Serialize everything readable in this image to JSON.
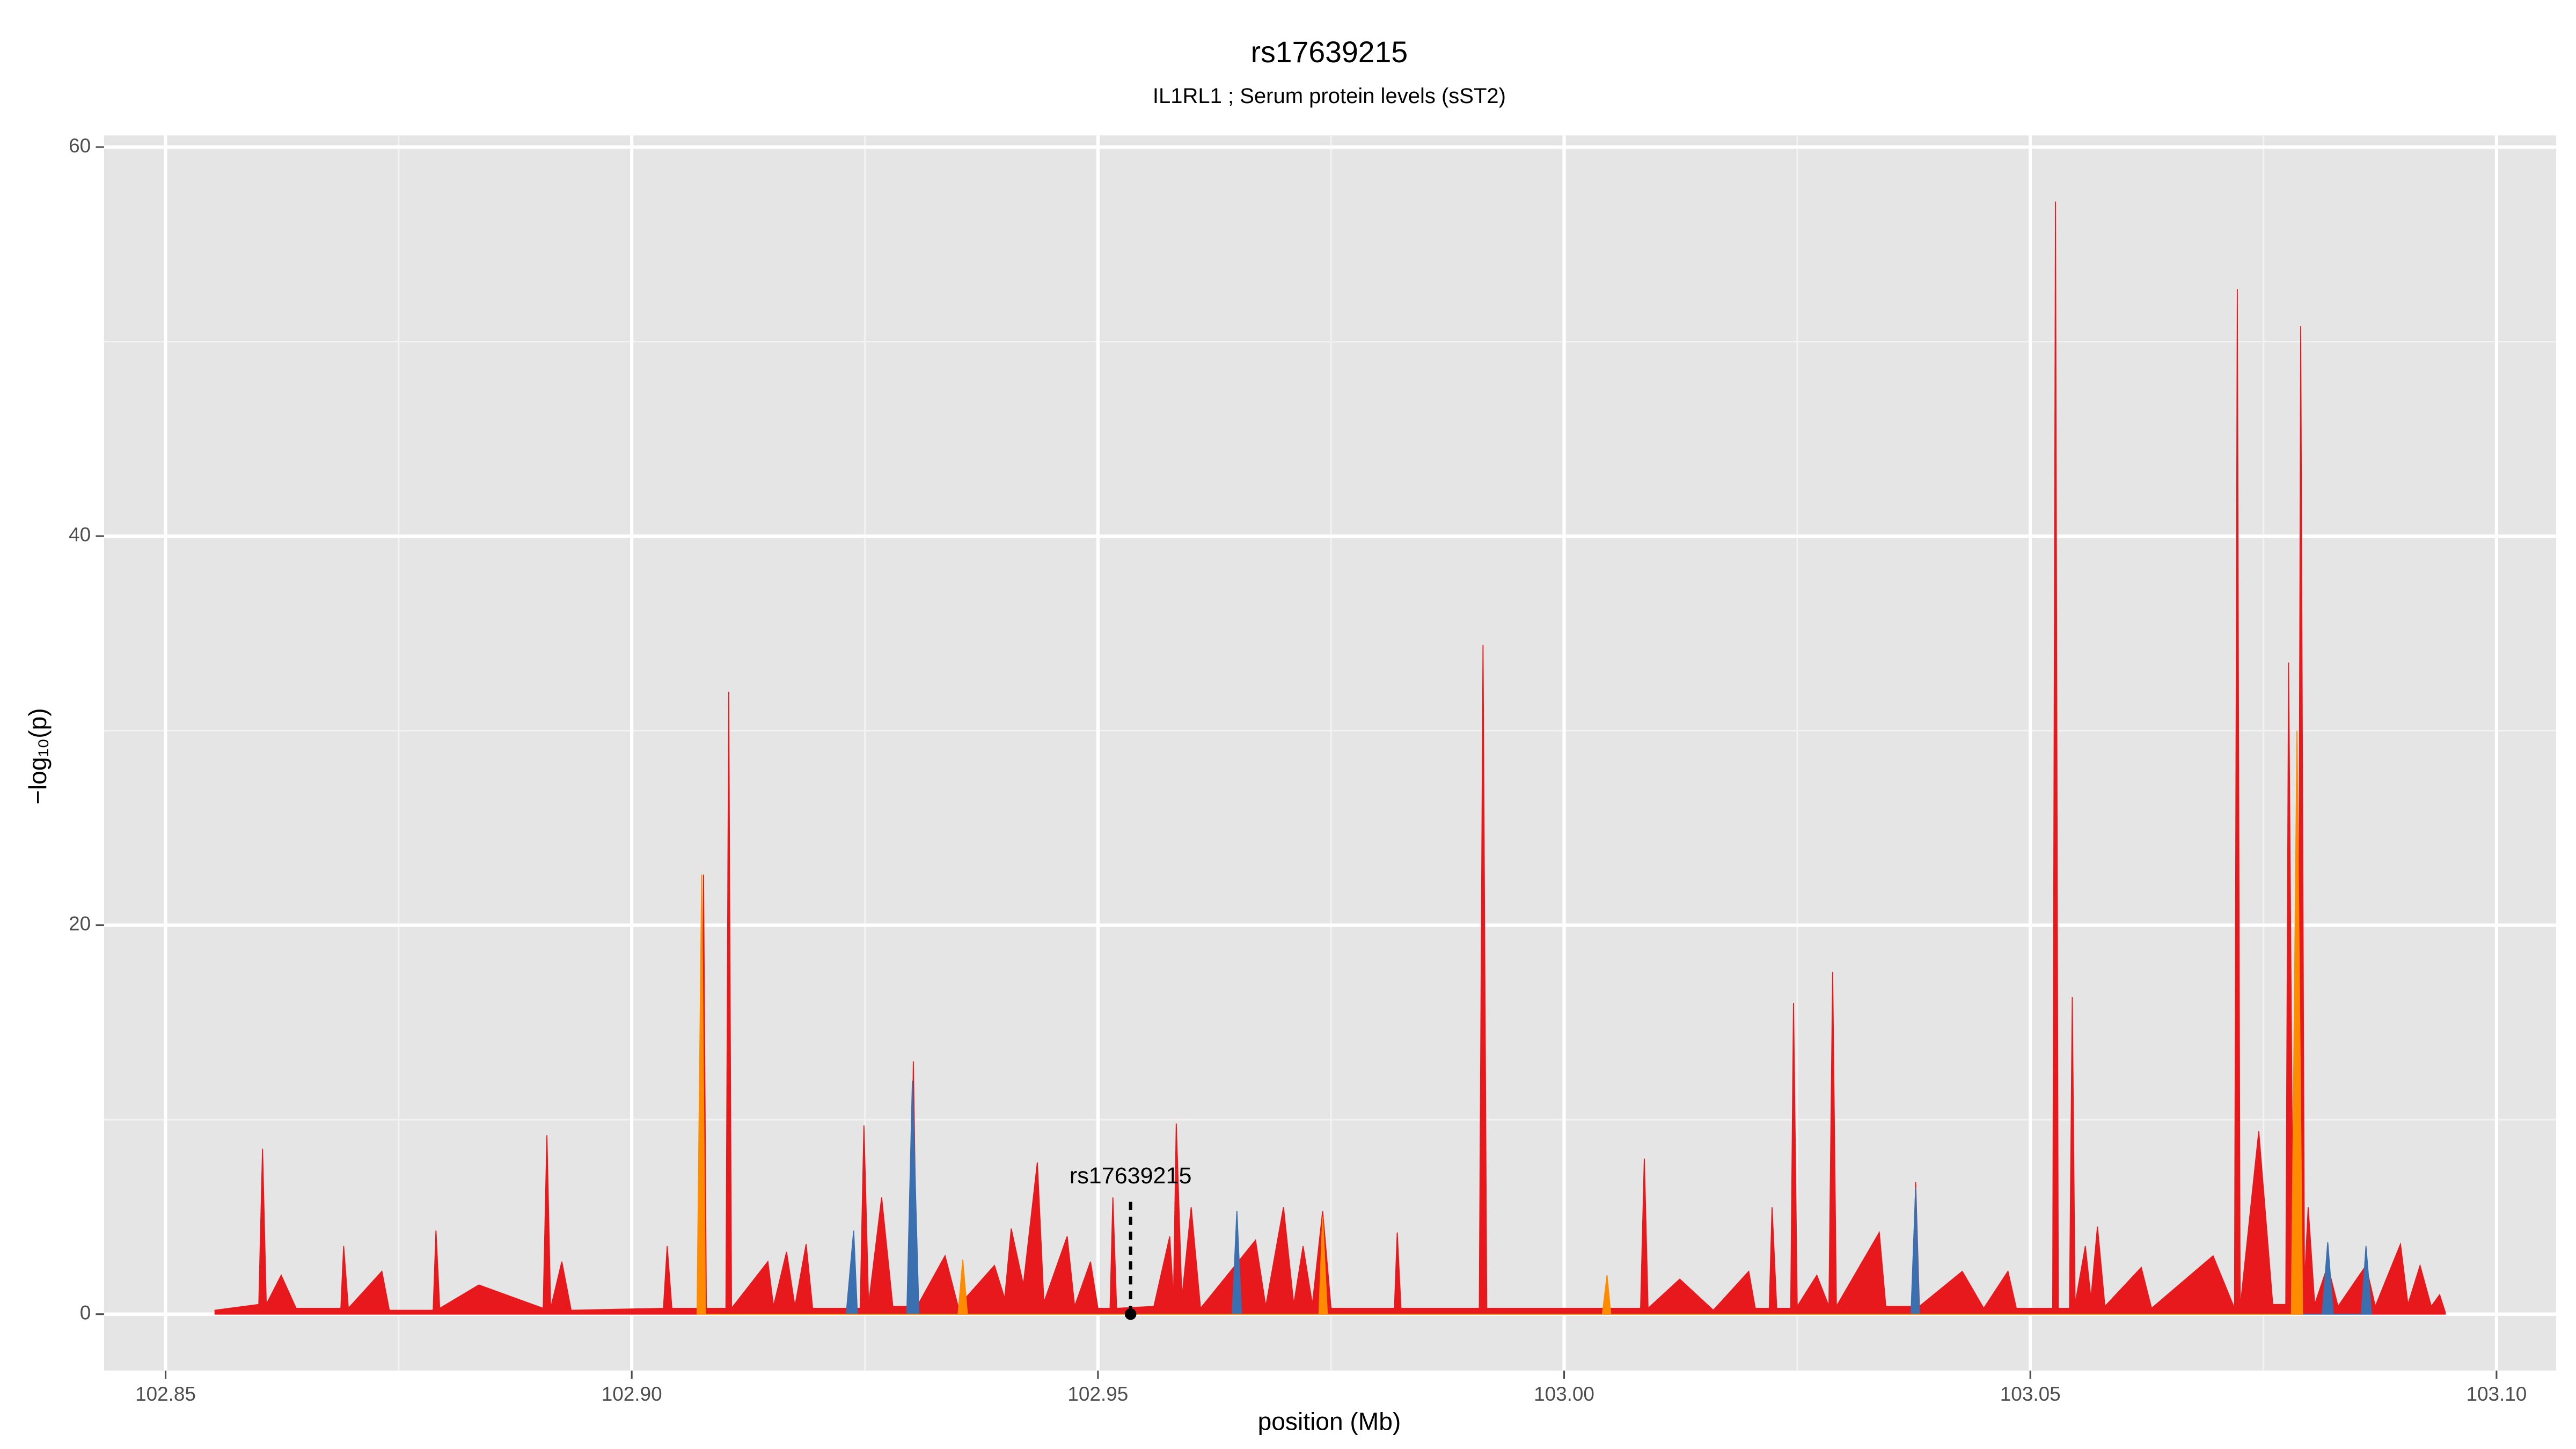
{
  "chart_data": {
    "type": "area",
    "title": "rs17639215",
    "subtitle": "IL1RL1 ; Serum protein levels (sST2)",
    "xlabel": "position (Mb)",
    "ylabel": "−log₁₀(p)",
    "xlim": [
      102.8434,
      103.1064
    ],
    "ylim": [
      -2.9,
      60.6
    ],
    "xticks": [
      {
        "value": 102.85,
        "label": "102.85"
      },
      {
        "value": 102.9,
        "label": "102.90"
      },
      {
        "value": 102.95,
        "label": "102.95"
      },
      {
        "value": 103,
        "label": "103.00"
      },
      {
        "value": 103.05,
        "label": "103.05"
      },
      {
        "value": 103.1,
        "label": "103.10"
      }
    ],
    "yticks": [
      0,
      20,
      40,
      60
    ],
    "xminor": [
      102.875,
      102.925,
      102.975,
      103.025,
      103.075
    ],
    "yminor": [
      10,
      30,
      50
    ],
    "grid": true,
    "annotation": {
      "text": "rs17639215",
      "x": 102.9535,
      "y": 0
    },
    "series": [
      {
        "name": "red",
        "color": "#e8191c",
        "x": [
          102.8553,
          102.86,
          102.8604,
          102.8608,
          102.8624,
          102.864,
          102.8688,
          102.8691,
          102.8696,
          102.8732,
          102.874,
          102.8787,
          102.879,
          102.8794,
          102.8836,
          102.8905,
          102.8909,
          102.8913,
          102.8925,
          102.8935,
          102.9034,
          102.9038,
          102.9043,
          102.9074,
          102.9077,
          102.908,
          102.9101,
          102.9104,
          102.9107,
          102.9146,
          102.9152,
          102.9166,
          102.9175,
          102.9187,
          102.9194,
          102.9245,
          102.9249,
          102.9254,
          102.9268,
          102.928,
          102.9299,
          102.9302,
          102.9306,
          102.9336,
          102.935,
          102.9389,
          102.94,
          102.9407,
          102.942,
          102.9435,
          102.9442,
          102.9467,
          102.9475,
          102.9492,
          102.95,
          102.9513,
          102.9516,
          102.952,
          102.956,
          102.9577,
          102.9581,
          102.9584,
          102.959,
          102.96,
          102.961,
          102.9669,
          102.968,
          102.9699,
          102.971,
          102.972,
          102.973,
          102.9741,
          102.975,
          102.9818,
          102.9821,
          102.9825,
          102.9909,
          102.9913,
          102.9917,
          103.0082,
          103.0086,
          103.009,
          103.0124,
          103.016,
          103.0198,
          103.0205,
          103.022,
          103.0223,
          103.0228,
          103.0243,
          103.0246,
          103.025,
          103.0271,
          103.0284,
          103.0288,
          103.0292,
          103.0338,
          103.0345,
          103.0374,
          103.0377,
          103.0381,
          103.0427,
          103.045,
          103.0476,
          103.0485,
          103.0524,
          103.0527,
          103.053,
          103.0542,
          103.0545,
          103.0548,
          103.0559,
          103.0565,
          103.0572,
          103.058,
          103.0619,
          103.063,
          103.0696,
          103.0719,
          103.0722,
          103.0725,
          103.0745,
          103.076,
          103.0774,
          103.0777,
          103.0782,
          103.0787,
          103.079,
          103.0794,
          103.0798,
          103.0805,
          103.0819,
          103.083,
          103.086,
          103.087,
          103.0897,
          103.0905,
          103.0918,
          103.093,
          103.0939,
          103.0945
        ],
        "values": [
          0.2,
          0.5,
          8.5,
          0.5,
          2.0,
          0.3,
          0.3,
          3.5,
          0.3,
          2.2,
          0.2,
          0.2,
          4.3,
          0.3,
          1.5,
          0.3,
          9.2,
          0.3,
          2.7,
          0.2,
          0.3,
          3.5,
          0.3,
          0.3,
          22.6,
          0.3,
          0.3,
          32.0,
          0.3,
          2.7,
          0.4,
          3.2,
          0.4,
          3.6,
          0.3,
          0.3,
          9.7,
          0.5,
          6.0,
          0.4,
          0.4,
          13.0,
          0.4,
          3.0,
          0.4,
          2.5,
          0.8,
          4.4,
          1.5,
          7.8,
          0.6,
          4.0,
          0.4,
          2.7,
          0.3,
          0.3,
          6.0,
          0.3,
          0.4,
          4.0,
          0.8,
          9.8,
          0.8,
          5.5,
          0.3,
          3.8,
          0.4,
          5.5,
          0.5,
          3.5,
          0.5,
          5.3,
          0.3,
          0.3,
          4.2,
          0.3,
          0.3,
          34.4,
          0.3,
          0.3,
          8.0,
          0.3,
          1.8,
          0.2,
          2.2,
          0.3,
          0.3,
          5.5,
          0.3,
          0.3,
          16.0,
          0.4,
          2.0,
          0.4,
          17.6,
          0.4,
          4.2,
          0.4,
          0.4,
          6.8,
          0.4,
          2.2,
          0.3,
          2.2,
          0.3,
          0.3,
          57.2,
          0.3,
          0.3,
          16.3,
          0.5,
          3.5,
          0.8,
          4.5,
          0.4,
          2.4,
          0.3,
          3.0,
          0.3,
          52.7,
          0.3,
          9.4,
          0.5,
          0.5,
          33.5,
          2.0,
          2.0,
          50.8,
          1.5,
          5.5,
          0.5,
          2.5,
          0.4,
          2.5,
          0.4,
          3.6,
          0.5,
          2.5,
          0.4,
          1.0,
          0.1
        ]
      },
      {
        "name": "blue",
        "color": "#3a6fb0",
        "x": [
          102.923,
          102.9238,
          102.9242,
          102.9295,
          102.9301,
          102.9308,
          102.9644,
          102.9649,
          102.9654,
          103.0372,
          103.0377,
          103.0381,
          103.0813,
          103.0819,
          103.0825,
          103.0855,
          103.086,
          103.0866
        ],
        "values": [
          0,
          4.3,
          0,
          0,
          12,
          0,
          0,
          5.3,
          0,
          0,
          6.5,
          0,
          0,
          3.7,
          0,
          0,
          3.5,
          0
        ]
      },
      {
        "name": "orange",
        "color": "#ff8c00",
        "x": [
          102.907,
          102.9075,
          102.9079,
          102.935,
          102.9355,
          102.936,
          102.9737,
          102.9741,
          102.9746,
          103.0041,
          103.0046,
          103.005,
          103.078,
          103.0786,
          103.0792
        ],
        "values": [
          0,
          22.6,
          0,
          0,
          2.8,
          0,
          0,
          5.0,
          0,
          0,
          2,
          0,
          0,
          30,
          0
        ]
      }
    ]
  }
}
